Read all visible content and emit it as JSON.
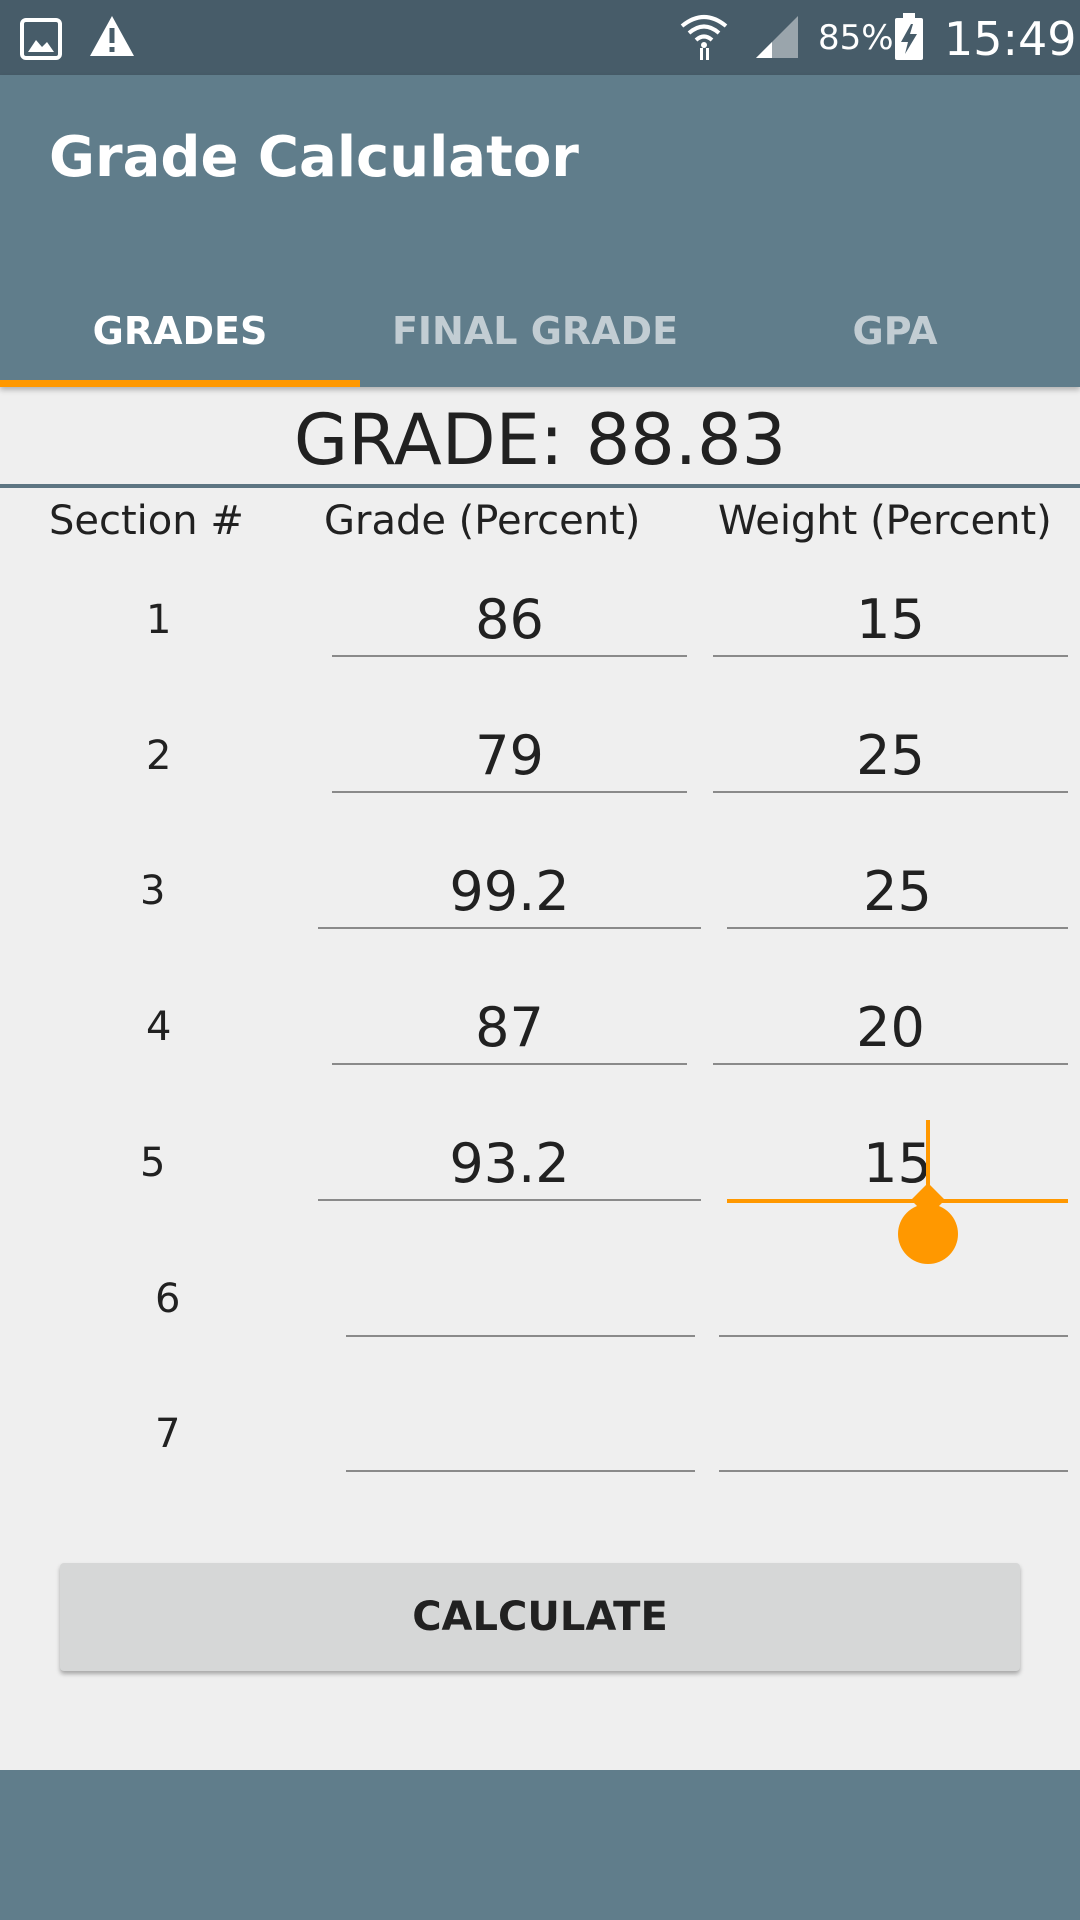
{
  "status_bar": {
    "battery": "85%",
    "time": "15:49",
    "icons": [
      "gallery-icon",
      "warning-icon",
      "wifi-icon",
      "signal-icon",
      "battery-charging-icon"
    ]
  },
  "app": {
    "title": "Grade Calculator"
  },
  "tabs": [
    {
      "label": "GRADES",
      "active": true
    },
    {
      "label": "FINAL GRADE",
      "active": false
    },
    {
      "label": "GPA",
      "active": false
    }
  ],
  "result": {
    "text": "GRADE: 88.83"
  },
  "table": {
    "headers": [
      "Section #",
      "Grade (Percent)",
      "Weight (Percent)"
    ],
    "rows": [
      {
        "section": "1",
        "grade": "86",
        "weight": "15"
      },
      {
        "section": "2",
        "grade": "79",
        "weight": "25"
      },
      {
        "section": "3",
        "grade": "99.2",
        "weight": "25"
      },
      {
        "section": "4",
        "grade": "87",
        "weight": "20"
      },
      {
        "section": "5",
        "grade": "93.2",
        "weight": "15"
      },
      {
        "section": "6",
        "grade": "",
        "weight": ""
      },
      {
        "section": "7",
        "grade": "",
        "weight": ""
      }
    ]
  },
  "button": {
    "calculate": "CALCULATE"
  },
  "colors": {
    "primary": "#607d8b",
    "status_bar": "#475c69",
    "accent": "#ff9800"
  }
}
